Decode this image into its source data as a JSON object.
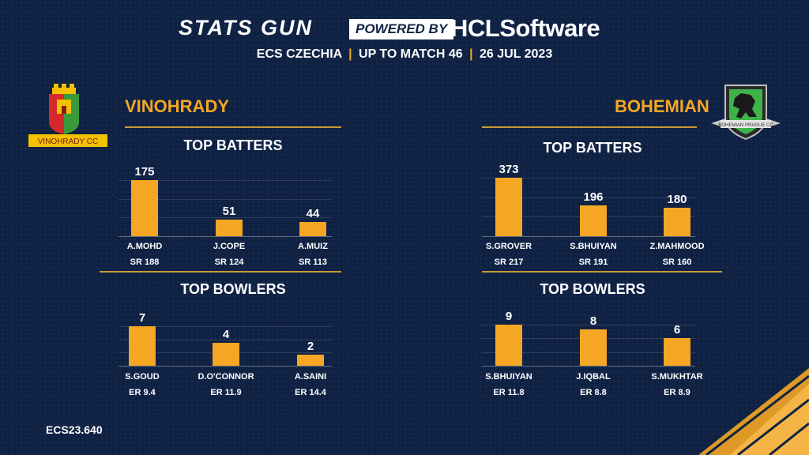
{
  "header": {
    "brand": "STATS GUN",
    "powered_by": "POWERED BY",
    "sponsor": "HCLSoftware",
    "subtitle_parts": [
      "ECS CZECHIA",
      "UP TO MATCH 46",
      "26 JUL 2023"
    ],
    "separator": "|"
  },
  "footer": {
    "code": "ECS23.640"
  },
  "colors": {
    "background": "#0f2244",
    "accent": "#f5a623",
    "rule": "#c99a3b"
  },
  "teams": [
    {
      "name": "VINOHRADY",
      "logo_label": "VINOHRADY CC"
    },
    {
      "name": "BOHEMIAN",
      "logo_label": "BOHEMIAN PRAGUE CC"
    }
  ],
  "section_titles": {
    "batters": "TOP BATTERS",
    "bowlers": "TOP BOWLERS"
  },
  "chart_data": [
    {
      "type": "bar",
      "team": "VINOHRADY",
      "title": "TOP BATTERS",
      "categories": [
        "A.MOHD",
        "J.COPE",
        "A.MUIZ"
      ],
      "values": [
        175,
        51,
        44
      ],
      "sublabels": [
        "SR 188",
        "SR 124",
        "SR 113"
      ]
    },
    {
      "type": "bar",
      "team": "VINOHRADY",
      "title": "TOP BOWLERS",
      "categories": [
        "S.GOUD",
        "D.O'CONNOR",
        "A.SAINI"
      ],
      "values": [
        7,
        4,
        2
      ],
      "sublabels": [
        "ER 9.4",
        "ER 11.9",
        "ER 14.4"
      ]
    },
    {
      "type": "bar",
      "team": "BOHEMIAN",
      "title": "TOP BATTERS",
      "categories": [
        "S.GROVER",
        "S.BHUIYAN",
        "Z.MAHMOOD"
      ],
      "values": [
        373,
        196,
        180
      ],
      "sublabels": [
        "SR 217",
        "SR 191",
        "SR 160"
      ]
    },
    {
      "type": "bar",
      "team": "BOHEMIAN",
      "title": "TOP BOWLERS",
      "categories": [
        "S.BHUIYAN",
        "J.IQBAL",
        "S.MUKHTAR"
      ],
      "values": [
        9,
        8,
        6
      ],
      "sublabels": [
        "ER 11.8",
        "ER 8.8",
        "ER 8.9"
      ]
    }
  ]
}
